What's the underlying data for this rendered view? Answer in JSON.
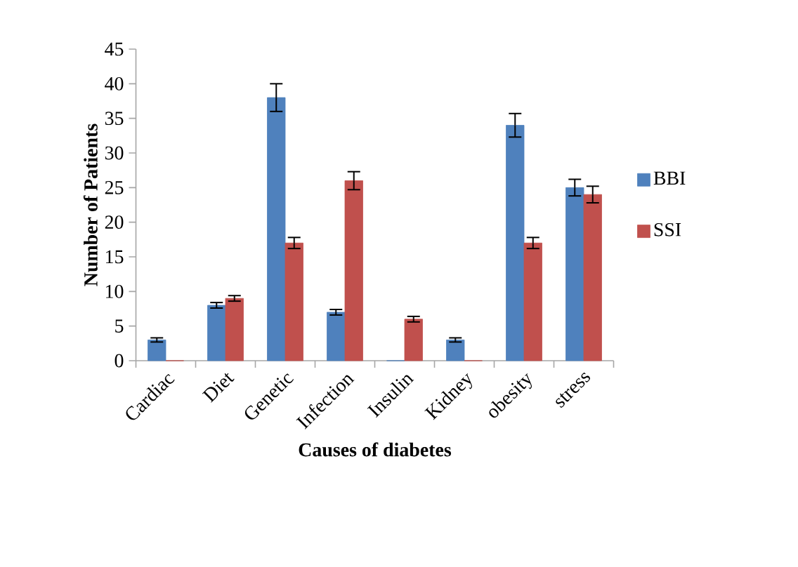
{
  "chart_data": {
    "type": "bar",
    "xlabel": "Causes of diabetes",
    "ylabel": "Number of Patients",
    "categories": [
      "Cardiac",
      "Diet",
      "Genetic",
      "Infection",
      "Insulin",
      "Kidney",
      "obesity",
      "stress"
    ],
    "series": [
      {
        "name": "BBI",
        "color": "#4f81bd",
        "values": [
          3,
          8,
          38,
          7,
          0,
          3,
          34,
          25
        ],
        "errors": [
          0.3,
          0.4,
          2,
          0.4,
          null,
          0.3,
          1.7,
          1.2
        ]
      },
      {
        "name": "SSI",
        "color": "#c0504d",
        "values": [
          0,
          9,
          17,
          26,
          6,
          0,
          17,
          24
        ],
        "errors": [
          null,
          0.4,
          0.8,
          1.3,
          0.4,
          null,
          0.8,
          1.2
        ]
      }
    ],
    "ylim": [
      0,
      45
    ],
    "yticks": [
      0,
      5,
      10,
      15,
      20,
      25,
      30,
      35,
      40,
      45
    ],
    "legend": "right"
  }
}
